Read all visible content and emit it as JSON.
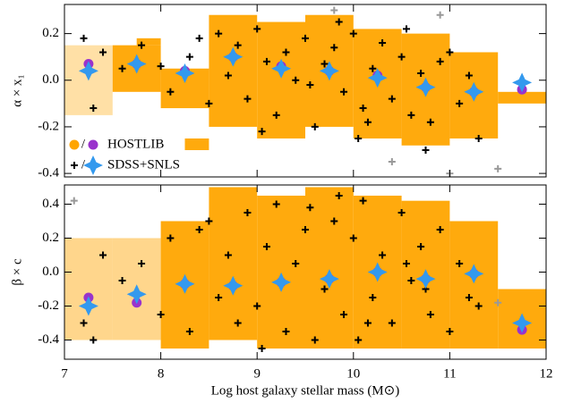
{
  "chart_data": [
    {
      "type": "scatter",
      "ylabel": "α × x₁",
      "xlim": [
        7,
        12
      ],
      "ylim": [
        -0.415,
        0.325
      ],
      "xticks": [
        7,
        8,
        9,
        10,
        11,
        12
      ],
      "yticks": [
        -0.4,
        -0.2,
        {
          "value": 0,
          "label": "0.0"
        },
        0.2
      ],
      "regions_color": "#ffa500",
      "regions": [
        {
          "x": [
            7.0,
            7.5
          ],
          "y": [
            -0.15,
            0.15
          ]
        },
        {
          "x": [
            7.5,
            8.0
          ],
          "y": [
            -0.05,
            0.15
          ]
        },
        {
          "x": [
            8.0,
            8.5
          ],
          "y": [
            -0.12,
            0.05
          ]
        },
        {
          "x": [
            8.5,
            9.0
          ],
          "y": [
            -0.2,
            0.28
          ]
        },
        {
          "x": [
            9.0,
            9.5
          ],
          "y": [
            -0.25,
            0.25
          ]
        },
        {
          "x": [
            9.5,
            10.0
          ],
          "y": [
            -0.2,
            0.28
          ]
        },
        {
          "x": [
            10.0,
            10.5
          ],
          "y": [
            -0.25,
            0.22
          ]
        },
        {
          "x": [
            10.5,
            11.0
          ],
          "y": [
            -0.28,
            0.2
          ]
        },
        {
          "x": [
            11.0,
            11.5
          ],
          "y": [
            -0.25,
            0.12
          ]
        },
        {
          "x": [
            11.5,
            12.0
          ],
          "y": [
            -0.1,
            -0.05
          ]
        },
        {
          "x": [
            8.25,
            8.5
          ],
          "y": [
            -0.3,
            -0.25
          ]
        },
        {
          "x": [
            7.75,
            8.0
          ],
          "y": [
            0.15,
            0.18
          ]
        }
      ],
      "series": [
        {
          "marker": "plus",
          "color": "#999999",
          "x": [
            9.8,
            10.4,
            11.0,
            11.5,
            10.9
          ],
          "values": [
            0.3,
            -0.35,
            -0.4,
            -0.38,
            0.28
          ]
        },
        {
          "marker": "plus",
          "color": "#000000",
          "x": [
            7.2,
            7.4,
            7.3,
            7.6,
            7.8,
            8.0,
            8.1,
            8.3,
            8.5,
            8.6,
            8.7,
            8.8,
            8.9,
            9.0,
            9.1,
            9.2,
            9.3,
            9.4,
            9.5,
            9.6,
            9.7,
            9.8,
            9.9,
            10.0,
            10.1,
            10.2,
            10.3,
            10.4,
            10.5,
            10.6,
            10.7,
            10.8,
            10.9,
            11.0,
            11.1,
            11.2,
            11.3,
            8.4,
            9.05,
            9.55,
            10.05,
            10.55,
            10.15,
            9.85,
            10.75
          ],
          "values": [
            0.18,
            0.12,
            -0.12,
            0.05,
            0.15,
            0.06,
            -0.05,
            0.1,
            -0.1,
            0.2,
            0.02,
            0.15,
            -0.08,
            0.22,
            0.08,
            -0.15,
            0.12,
            0.0,
            0.18,
            -0.2,
            0.07,
            0.14,
            -0.05,
            0.2,
            -0.12,
            0.05,
            0.16,
            -0.08,
            0.1,
            -0.15,
            0.03,
            -0.18,
            0.08,
            0.12,
            -0.1,
            0.02,
            -0.25,
            0.18,
            -0.22,
            -0.02,
            -0.25,
            0.22,
            -0.18,
            0.25,
            -0.3
          ]
        },
        {
          "marker": "circle",
          "color": "#9933cc",
          "x": [
            7.25,
            7.75,
            8.25,
            8.75,
            9.25,
            9.75,
            10.25,
            10.75,
            11.25,
            11.75
          ],
          "values": [
            0.07,
            0.07,
            0.04,
            0.1,
            0.06,
            0.04,
            0.02,
            -0.03,
            -0.05,
            -0.04
          ]
        },
        {
          "marker": "star",
          "color": "#3399ee",
          "x": [
            7.25,
            7.75,
            8.25,
            8.75,
            9.25,
            9.75,
            10.25,
            10.75,
            11.25,
            11.75
          ],
          "values": [
            0.04,
            0.07,
            0.03,
            0.1,
            0.05,
            0.04,
            0.01,
            -0.03,
            -0.05,
            -0.01
          ]
        }
      ],
      "legend": {
        "separator": "/",
        "entries": [
          {
            "label": "HOSTLIB",
            "colors": [
              "#ffa500",
              "#9933cc"
            ],
            "markers": [
              "circle",
              "circle"
            ]
          },
          {
            "label": "SDSS+SNLS",
            "colors": [
              "#000000",
              "#3399ee"
            ],
            "markers": [
              "plus",
              "star"
            ]
          }
        ]
      }
    },
    {
      "type": "scatter",
      "ylabel": "β × c",
      "xlabel": "Log host galaxy stellar mass (M⊙)",
      "xlim": [
        7,
        12
      ],
      "ylim": [
        -0.513,
        0.513
      ],
      "xticks": [
        7,
        8,
        9,
        10,
        11,
        12
      ],
      "yticks": [
        -0.4,
        -0.2,
        {
          "value": 0,
          "label": "0.0"
        },
        0.2,
        0.4
      ],
      "regions_color": "#ffa500",
      "regions": [
        {
          "x": [
            7.0,
            7.5
          ],
          "y": [
            -0.4,
            0.2
          ]
        },
        {
          "x": [
            7.5,
            8.0
          ],
          "y": [
            -0.4,
            0.2
          ]
        },
        {
          "x": [
            8.0,
            8.5
          ],
          "y": [
            -0.45,
            0.3
          ]
        },
        {
          "x": [
            8.5,
            9.0
          ],
          "y": [
            -0.4,
            0.5
          ]
        },
        {
          "x": [
            9.0,
            9.5
          ],
          "y": [
            -0.45,
            0.45
          ]
        },
        {
          "x": [
            9.5,
            10.0
          ],
          "y": [
            -0.45,
            0.5
          ]
        },
        {
          "x": [
            10.0,
            10.5
          ],
          "y": [
            -0.45,
            0.45
          ]
        },
        {
          "x": [
            10.5,
            11.0
          ],
          "y": [
            -0.45,
            0.42
          ]
        },
        {
          "x": [
            11.0,
            11.5
          ],
          "y": [
            -0.45,
            0.3
          ]
        },
        {
          "x": [
            11.5,
            12.0
          ],
          "y": [
            -0.45,
            -0.1
          ]
        }
      ],
      "series": [
        {
          "marker": "plus",
          "color": "#999999",
          "x": [
            7.1,
            11.5
          ],
          "values": [
            0.42,
            -0.18
          ]
        },
        {
          "marker": "plus",
          "color": "#000000",
          "x": [
            7.2,
            7.4,
            7.3,
            7.6,
            7.8,
            8.0,
            8.1,
            8.3,
            8.5,
            8.6,
            8.7,
            8.8,
            8.9,
            9.0,
            9.1,
            9.2,
            9.3,
            9.4,
            9.5,
            9.6,
            9.7,
            9.8,
            9.9,
            10.0,
            10.1,
            10.2,
            10.3,
            10.4,
            10.5,
            10.6,
            10.7,
            10.8,
            10.9,
            11.0,
            11.1,
            11.2,
            11.3,
            8.4,
            9.05,
            9.55,
            10.05,
            10.55,
            10.15,
            9.85,
            10.75
          ],
          "values": [
            -0.3,
            0.1,
            -0.4,
            -0.05,
            0.05,
            -0.25,
            0.2,
            -0.35,
            0.3,
            -0.15,
            0.1,
            -0.3,
            0.35,
            -0.2,
            0.15,
            0.4,
            -0.35,
            0.05,
            0.25,
            -0.4,
            -0.1,
            0.3,
            -0.25,
            0.2,
            0.42,
            -0.15,
            0.1,
            -0.3,
            0.35,
            -0.05,
            0.15,
            -0.25,
            0.25,
            -0.35,
            0.05,
            -0.15,
            -0.2,
            0.25,
            -0.45,
            0.38,
            -0.4,
            0.05,
            -0.3,
            0.45,
            -0.1
          ]
        },
        {
          "marker": "circle",
          "color": "#9933cc",
          "x": [
            7.25,
            7.75,
            8.25,
            8.75,
            9.25,
            9.75,
            10.25,
            10.75,
            11.25,
            11.75
          ],
          "values": [
            -0.15,
            -0.18,
            -0.07,
            -0.08,
            -0.06,
            -0.04,
            0.0,
            -0.04,
            -0.01,
            -0.34
          ]
        },
        {
          "marker": "star",
          "color": "#3399ee",
          "x": [
            7.25,
            7.75,
            8.25,
            8.75,
            9.25,
            9.75,
            10.25,
            10.75,
            11.25,
            11.75
          ],
          "values": [
            -0.2,
            -0.13,
            -0.07,
            -0.08,
            -0.06,
            -0.04,
            0.0,
            -0.04,
            -0.01,
            -0.3
          ]
        }
      ]
    }
  ]
}
